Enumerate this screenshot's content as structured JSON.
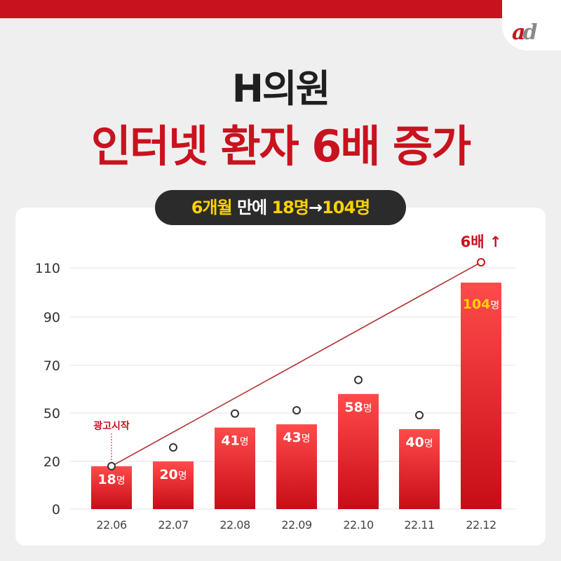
{
  "header": {
    "title_line1": "H의원",
    "title_line2": "인터넷 환자 6배 증가"
  },
  "logo": {
    "a": "a",
    "d": "d"
  },
  "pill": {
    "part1": "6개월",
    "part2": " 만에 ",
    "part3": "18명",
    "part4": "→",
    "part5": "104명"
  },
  "colors": {
    "brand_red": "#c8131e",
    "dark": "#2b2b2b",
    "highlight_yellow": "#ffd200"
  },
  "chart_data": {
    "type": "bar",
    "categories": [
      "22.06",
      "22.07",
      "22.08",
      "22.09",
      "22.10",
      "22.11",
      "22.12"
    ],
    "values": [
      18,
      20,
      41,
      43,
      58,
      40,
      104
    ],
    "unit": "명",
    "value_label_colors": [
      "#ffffff",
      "#ffffff",
      "#ffffff",
      "#ffffff",
      "#ffffff",
      "#ffffff",
      "#ffd200"
    ],
    "y_ticks": [
      "110",
      "90",
      "70",
      "50",
      "20",
      "0"
    ],
    "ylim": [
      0,
      110
    ],
    "grid": true,
    "trend_line": {
      "from_index": 0,
      "to_index": 6,
      "from_value": 18,
      "to_value": 110
    },
    "trend_label": "6배 ↑",
    "annotation": {
      "text": "광고시작",
      "index": 0
    }
  }
}
